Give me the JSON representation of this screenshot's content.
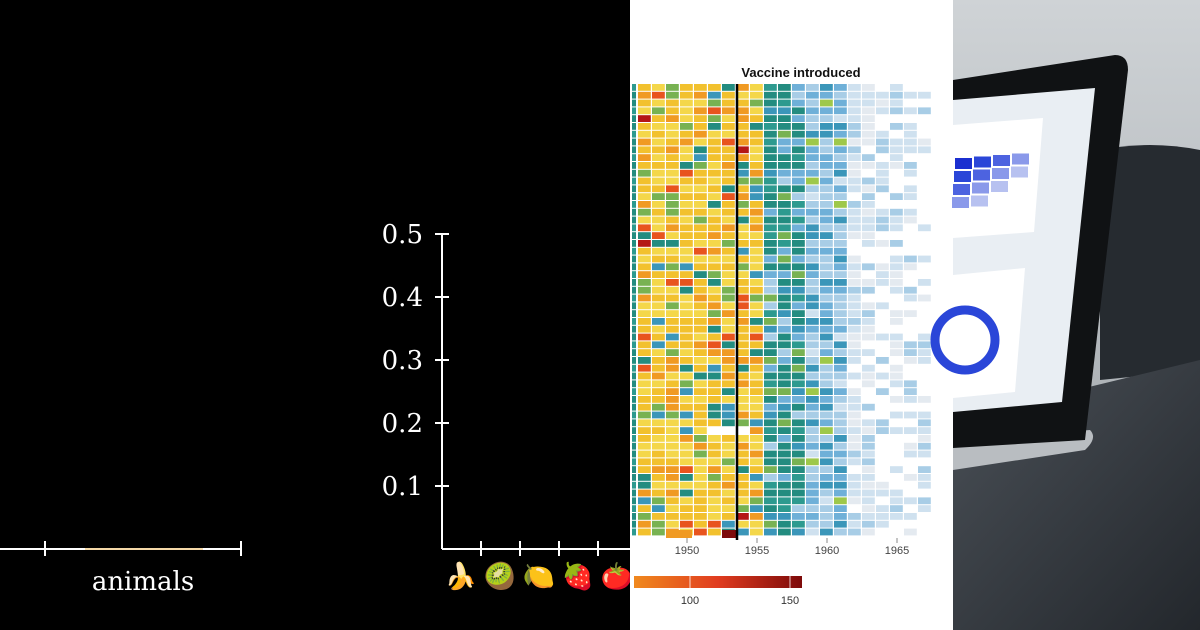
{
  "chart_data": [
    {
      "type": "line",
      "xlabel": "animals",
      "x_ticks": 2,
      "note": "axis-only fragment"
    },
    {
      "type": "bar",
      "ylabel": "",
      "y_ticks": [
        0.1,
        0.2,
        0.3,
        0.4,
        0.5
      ],
      "y_tick_labels": [
        "0.1",
        "0.2",
        "0.3",
        "0.4",
        "0.5"
      ],
      "ylim": [
        0,
        0.5
      ],
      "categories": [
        "🍌",
        "🥝",
        "🍋",
        "🍓",
        "🍅"
      ]
    },
    {
      "type": "heatmap",
      "title": "Vaccine introduced",
      "x_ticks": [
        1950,
        1955,
        1960,
        1965
      ],
      "x_tick_labels": [
        "1950",
        "1955",
        "1960",
        "1965"
      ],
      "x_range": [
        1946,
        1968
      ],
      "vaccine_year": 1954.5,
      "rows": 58,
      "colorbar": {
        "tick_labels": [
          "100",
          "150"
        ],
        "colors": [
          "#f0891e",
          "#e03c1f",
          "#7d0a0a"
        ]
      },
      "palette": [
        "#238c80",
        "#2d9a8f",
        "#3b96b9",
        "#6fb0d8",
        "#a8cde6",
        "#cfe1ef",
        "#e4eaf0",
        "#78b252",
        "#9ec84a",
        "#f2c12e",
        "#f4d74a",
        "#f09a23",
        "#e8541e",
        "#b41616"
      ]
    }
  ],
  "photo": {
    "subject": "laptop showing analytics dashboard",
    "colors": {
      "screen": "#e9eef3",
      "accent_blue": "#2a46d8",
      "bezel": "#111",
      "desk": "#3b4148"
    }
  }
}
